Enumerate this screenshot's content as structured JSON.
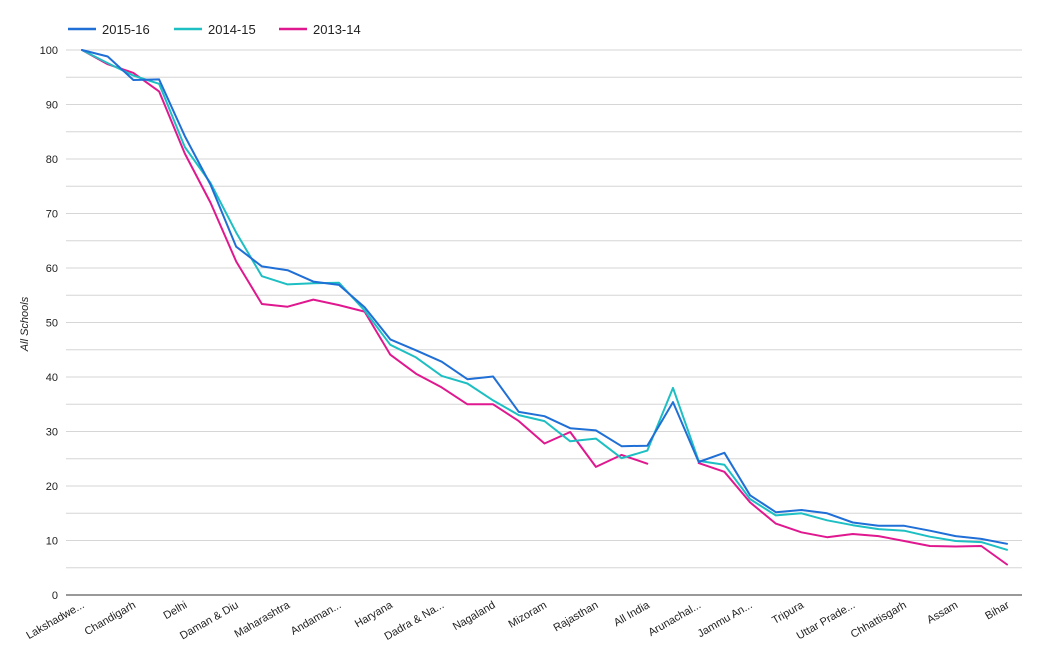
{
  "chart_data": {
    "type": "line",
    "ylabel": "All Schools",
    "ylim": [
      0,
      100
    ],
    "yticks": [
      0,
      10,
      20,
      30,
      40,
      50,
      60,
      70,
      80,
      90,
      100
    ],
    "grid": true,
    "legend_position": "top-left",
    "categories": [
      "Lakshadwe...",
      "",
      "Chandigarh",
      "",
      "Delhi",
      "",
      "Daman & Diu",
      "",
      "Maharashtra",
      "",
      "Andaman...",
      "",
      "Haryana",
      "",
      "Dadra & Na...",
      "",
      "Nagaland",
      "",
      "Mizoram",
      "",
      "Rajasthan",
      "",
      "All India",
      "",
      "Arunachal...",
      "",
      "Jammu An...",
      "",
      "Tripura",
      "",
      "Uttar Prade...",
      "",
      "Chhattisgarh",
      "",
      "Assam",
      "",
      "Bihar"
    ],
    "series": [
      {
        "name": "2015-16",
        "color": "#1f6fd6",
        "values": [
          100,
          98.8,
          94.5,
          94.6,
          84.2,
          75.3,
          63.9,
          60.3,
          59.6,
          57.5,
          56.9,
          52.8,
          46.9,
          44.9,
          42.8,
          39.6,
          40.1,
          33.6,
          32.8,
          30.6,
          30.2,
          27.3,
          27.4,
          35.4,
          24.4,
          26.1,
          18.3,
          15.2,
          15.6,
          15.0,
          13.3,
          12.7,
          12.7,
          11.8,
          10.8,
          10.3,
          9.4
        ]
      },
      {
        "name": "2014-15",
        "color": "#1dbfc3",
        "values": [
          100,
          97.6,
          95.3,
          93.8,
          82.2,
          75.6,
          66.5,
          58.5,
          57.0,
          57.2,
          57.3,
          52.2,
          45.9,
          43.6,
          40.2,
          38.8,
          35.7,
          33.0,
          31.9,
          28.2,
          28.7,
          25.1,
          26.5,
          38.0,
          24.6,
          23.9,
          17.6,
          14.6,
          15.0,
          13.7,
          12.8,
          12.1,
          11.8,
          10.7,
          9.9,
          9.7,
          8.3
        ]
      },
      {
        "name": "2013-14",
        "color": "#e0188f",
        "values": [
          100,
          97.4,
          95.8,
          92.4,
          81.0,
          72.0,
          61.2,
          53.4,
          52.9,
          54.2,
          53.2,
          52.0,
          44.1,
          40.6,
          38.1,
          35.0,
          35.0,
          31.9,
          27.8,
          29.9,
          23.5,
          25.7,
          24.1,
          null,
          24.2,
          22.6,
          17.0,
          13.1,
          11.5,
          10.6,
          11.2,
          10.8,
          9.9,
          9.0,
          8.9,
          9.0,
          5.6
        ]
      }
    ]
  }
}
